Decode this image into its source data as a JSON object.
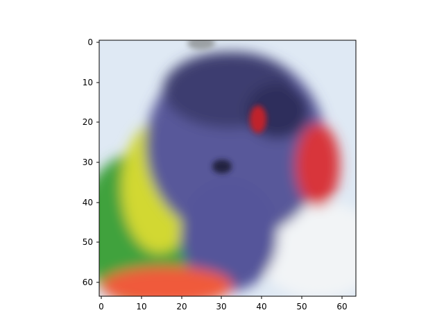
{
  "chart_data": {
    "type": "heatmap",
    "subtype": "imshow",
    "title": "",
    "xlabel": "",
    "ylabel": "",
    "xlim": [
      -0.5,
      63.5
    ],
    "ylim": [
      63.5,
      -0.5
    ],
    "image_shape": [
      64,
      64,
      3
    ],
    "xticks": [
      0,
      10,
      20,
      30,
      40,
      50,
      60
    ],
    "xtick_labels": [
      "0",
      "10",
      "20",
      "30",
      "40",
      "50",
      "60"
    ],
    "yticks": [
      0,
      10,
      20,
      30,
      40,
      50,
      60
    ],
    "ytick_labels": [
      "0",
      "10",
      "20",
      "30",
      "40",
      "50",
      "60"
    ],
    "grid": false,
    "legend": "none",
    "colorbar": false,
    "content": "blurry low-resolution photo of a parrot head (rainbow lorikeet)",
    "palette": {
      "sky": "#dfe9f4",
      "blue_head": "#58589a",
      "dark_blue": "#2e2e5c",
      "yellow": "#d2d830",
      "green": "#3fa23c",
      "red_beak": "#d8343a",
      "orange": "#f05a3a",
      "eye_red": "#c0212a",
      "pale": "#f2f4f6"
    }
  }
}
